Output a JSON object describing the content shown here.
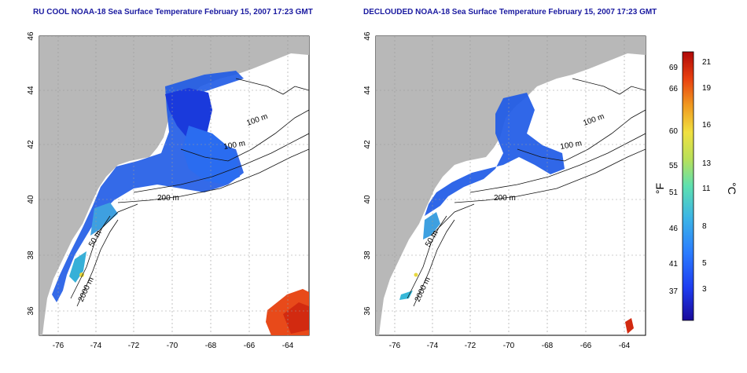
{
  "panels": [
    {
      "title": "RU COOL NOAA-18 Sea Surface Temperature February 15, 2007 17:23 GMT",
      "contour_labels": [
        "100 m",
        "100 m",
        "200 m",
        "50 m",
        "2000 m"
      ]
    },
    {
      "title": "DECLOUDED NOAA-18 Sea Surface Temperature February 15, 2007 17:23 GMT",
      "contour_labels": [
        "100 m",
        "100 m",
        "200 m",
        "50 m",
        "2000 m"
      ]
    }
  ],
  "axes": {
    "lat_ticks": [
      "36",
      "38",
      "40",
      "42",
      "44",
      "46"
    ],
    "lon_ticks": [
      "-76",
      "-74",
      "-72",
      "-70",
      "-68",
      "-66",
      "-64"
    ]
  },
  "colorbar": {
    "unit_left": "°F",
    "unit_right": "°C",
    "fahrenheit_ticks": [
      "69",
      "66",
      "60",
      "55",
      "51",
      "46",
      "41",
      "37"
    ],
    "celsius_ticks": [
      "21",
      "19",
      "16",
      "13",
      "11",
      "8",
      "5",
      "3"
    ],
    "colors": [
      "#1a0a9a",
      "#1e3cf0",
      "#2a7bff",
      "#3cb4e6",
      "#5ee0b0",
      "#b8e05a",
      "#f0e040",
      "#f09a20",
      "#e84010",
      "#b00808"
    ]
  }
}
